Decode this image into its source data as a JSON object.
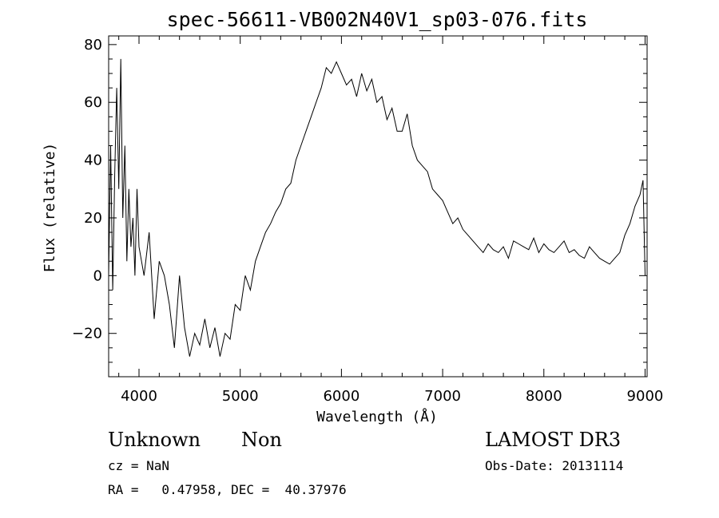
{
  "chart_data": {
    "type": "line",
    "title": "spec-56611-VB002N40V1_sp03-076.fits",
    "xlabel": "Wavelength (Å)",
    "ylabel": "Flux (relative)",
    "xlim": [
      3700,
      9020
    ],
    "ylim": [
      -35,
      83
    ],
    "xticks": [
      4000,
      5000,
      6000,
      7000,
      8000,
      9000
    ],
    "yticks": [
      -20,
      0,
      20,
      40,
      60,
      80
    ],
    "ytick_labels": [
      "−20",
      "0",
      "20",
      "40",
      "60",
      "80"
    ],
    "grid": false,
    "legend": "none",
    "line_color": "#000000",
    "series": [
      {
        "x": [
          3700,
          3720,
          3740,
          3760,
          3780,
          3800,
          3820,
          3840,
          3860,
          3880,
          3900,
          3920,
          3940,
          3960,
          3980,
          4000,
          4050,
          4100,
          4150,
          4200,
          4250,
          4300,
          4350,
          4400,
          4450,
          4500,
          4550,
          4600,
          4650,
          4700,
          4750,
          4800,
          4850,
          4900,
          4950,
          5000,
          5050,
          5100,
          5150,
          5200,
          5250,
          5300,
          5350,
          5400,
          5450,
          5500,
          5550,
          5600,
          5650,
          5700,
          5750,
          5800,
          5850,
          5900,
          5950,
          6000,
          6050,
          6100,
          6150,
          6200,
          6250,
          6300,
          6350,
          6400,
          6450,
          6500,
          6550,
          6600,
          6650,
          6700,
          6750,
          6800,
          6850,
          6900,
          6950,
          7000,
          7050,
          7100,
          7150,
          7200,
          7250,
          7300,
          7350,
          7400,
          7450,
          7500,
          7550,
          7600,
          7650,
          7700,
          7750,
          7800,
          7850,
          7900,
          7950,
          8000,
          8050,
          8100,
          8150,
          8200,
          8250,
          8300,
          8350,
          8400,
          8450,
          8500,
          8550,
          8600,
          8650,
          8700,
          8750,
          8800,
          8850,
          8900,
          8950,
          8980,
          9000
        ],
        "y": [
          0,
          45,
          -5,
          35,
          65,
          30,
          75,
          20,
          45,
          5,
          30,
          10,
          20,
          0,
          30,
          10,
          0,
          15,
          -15,
          5,
          0,
          -10,
          -25,
          0,
          -18,
          -28,
          -20,
          -24,
          -15,
          -25,
          -18,
          -28,
          -20,
          -22,
          -10,
          -12,
          0,
          -5,
          5,
          10,
          15,
          18,
          22,
          25,
          30,
          32,
          40,
          45,
          50,
          55,
          60,
          65,
          72,
          70,
          74,
          70,
          66,
          68,
          62,
          70,
          64,
          68,
          60,
          62,
          54,
          58,
          50,
          50,
          56,
          45,
          40,
          38,
          36,
          30,
          28,
          26,
          22,
          18,
          20,
          16,
          14,
          12,
          10,
          8,
          11,
          9,
          8,
          10,
          6,
          12,
          11,
          10,
          9,
          13,
          8,
          11,
          9,
          8,
          10,
          12,
          8,
          9,
          7,
          6,
          10,
          8,
          6,
          5,
          4,
          6,
          8,
          14,
          18,
          24,
          28,
          33,
          0
        ]
      }
    ]
  },
  "info": {
    "object_class": "Unknown",
    "subclass": "Non",
    "survey": "LAMOST DR3",
    "cz": "cz = NaN",
    "obs_date": "Obs-Date: 20131114",
    "coords": "RA =   0.47958, DEC =  40.37976"
  }
}
